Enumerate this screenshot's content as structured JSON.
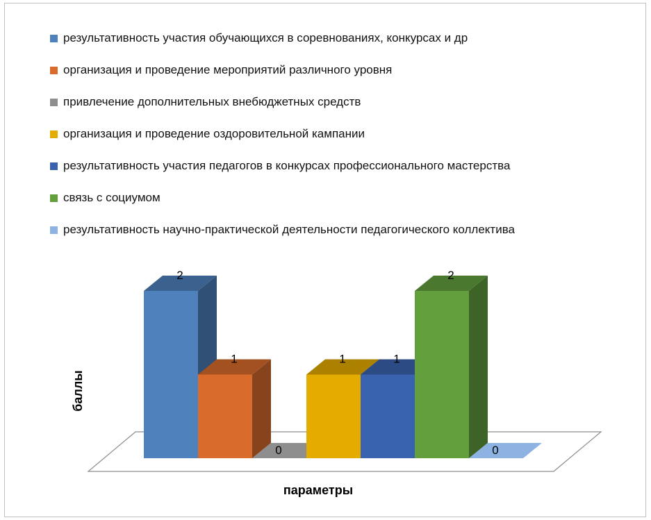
{
  "chart_data": {
    "type": "bar",
    "title": "",
    "xlabel": "параметры",
    "ylabel": "баллы",
    "ylim": [
      0,
      2
    ],
    "legend_position": "top",
    "categories": [
      ""
    ],
    "series": [
      {
        "name": "результативность участия обучающихся в соревнованиях, конкурсах и др",
        "values": [
          2
        ],
        "color": "#4F81BD"
      },
      {
        "name": "организация и проведение мероприятий различного уровня",
        "values": [
          1
        ],
        "color": "#D96C2C"
      },
      {
        "name": "привлечение дополнительных внебюджетных средств",
        "values": [
          0
        ],
        "color": "#8E8E8E"
      },
      {
        "name": "организация и проведение оздоровительной кампании",
        "values": [
          1
        ],
        "color": "#E5AC00"
      },
      {
        "name": "результативность участия педагогов в конкурсах профессионального мастерства",
        "values": [
          1
        ],
        "color": "#3A63AF"
      },
      {
        "name": "связь с социумом",
        "values": [
          2
        ],
        "color": "#63A03D"
      },
      {
        "name": "результативность научно-практической деятельности педагогического коллектива",
        "values": [
          0
        ],
        "color": "#8DB3E2"
      }
    ]
  }
}
